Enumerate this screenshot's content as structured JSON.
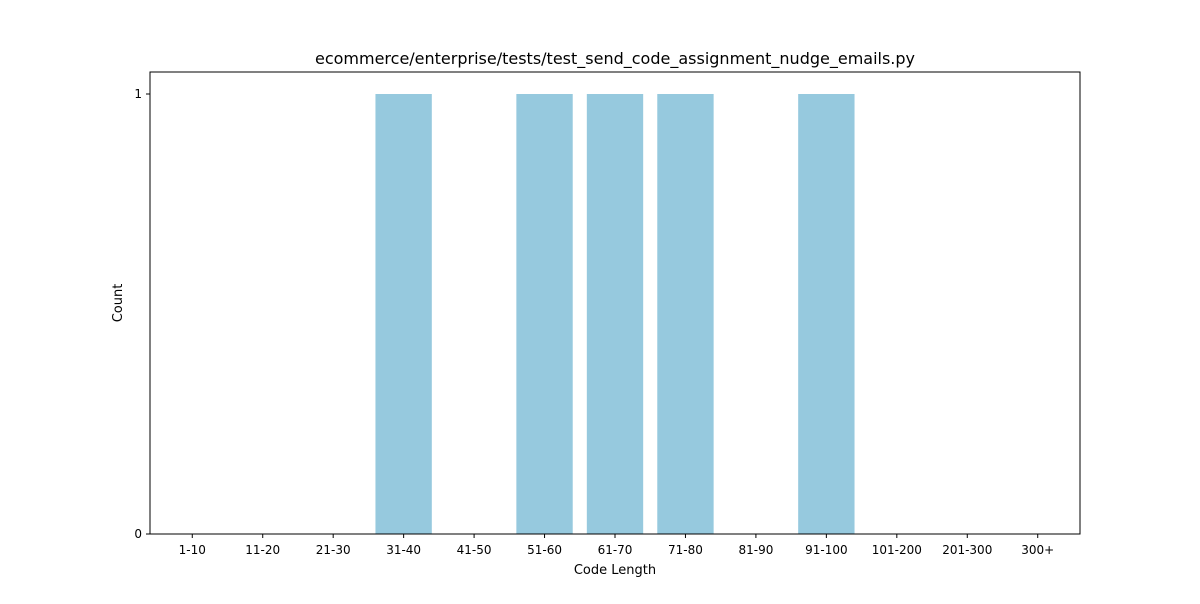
{
  "chart_data": {
    "type": "bar",
    "title": "ecommerce/enterprise/tests/test_send_code_assignment_nudge_emails.py",
    "xlabel": "Code Length",
    "ylabel": "Count",
    "categories": [
      "1-10",
      "11-20",
      "21-30",
      "31-40",
      "41-50",
      "51-60",
      "61-70",
      "71-80",
      "81-90",
      "91-100",
      "101-200",
      "201-300",
      "300+"
    ],
    "values": [
      0,
      0,
      0,
      1,
      0,
      1,
      1,
      1,
      0,
      1,
      0,
      0,
      0
    ],
    "ylim": [
      0,
      1.05
    ],
    "yticks": [
      0,
      1
    ],
    "bar_color": "#96c9de",
    "grid": false,
    "legend": "none"
  }
}
